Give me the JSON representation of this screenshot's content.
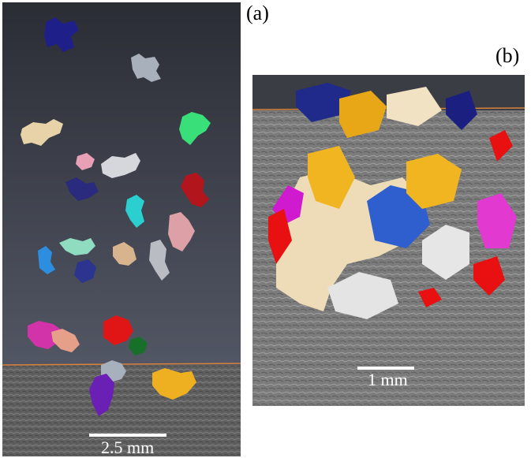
{
  "figure": {
    "panel_a": {
      "label": "(a)",
      "scale_bar": "2.5 mm",
      "colors": {
        "background_top": "#2e3038",
        "background_bottom": "#5a5f6e",
        "ground": "#6b6b6b",
        "surface_line": "#d9823a"
      }
    },
    "panel_b": {
      "label": "(b)",
      "scale_bar": "1 mm",
      "colors": {
        "background_top": "#3a3c44",
        "ground": "#7a7a7a",
        "surface_line": "#d9823a"
      }
    }
  }
}
